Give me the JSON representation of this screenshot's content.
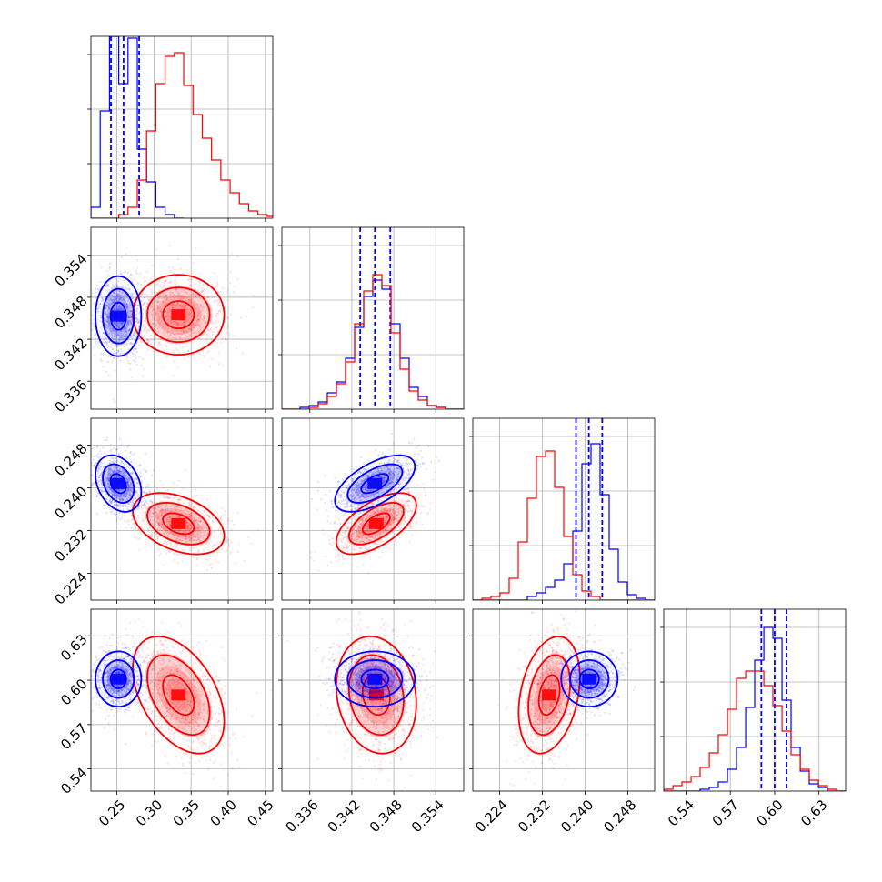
{
  "chart_data": {
    "type": "corner",
    "colors": {
      "sample_1": "#0000ff",
      "sample_2": "#ff0000"
    },
    "grid": true,
    "quantile_lines": {
      "style": "dashed",
      "color": "#0000ff"
    },
    "parameters": [
      {
        "range": [
          0.215,
          0.46
        ],
        "ticks": [
          0.25,
          0.3,
          0.35,
          0.4,
          0.45
        ],
        "tick_labels": [
          "0.25",
          "0.30",
          "0.35",
          "0.40",
          "0.45"
        ]
      },
      {
        "range": [
          0.332,
          0.358
        ],
        "ticks": [
          0.336,
          0.342,
          0.348,
          0.354
        ],
        "tick_labels": [
          "0.336",
          "0.342",
          "0.348",
          "0.354"
        ]
      },
      {
        "range": [
          0.219,
          0.253
        ],
        "ticks": [
          0.224,
          0.232,
          0.24,
          0.248
        ],
        "tick_labels": [
          "0.224",
          "0.232",
          "0.240",
          "0.248"
        ]
      },
      {
        "range": [
          0.525,
          0.648
        ],
        "ticks": [
          0.54,
          0.57,
          0.6,
          0.63
        ],
        "tick_labels": [
          "0.54",
          "0.57",
          "0.60",
          "0.63"
        ]
      }
    ],
    "series": [
      {
        "color": "#0000ff",
        "mean": [
          0.252,
          0.3453,
          0.2408,
          0.6008
        ],
        "sd": [
          0.014,
          0.0026,
          0.0024,
          0.0085
        ],
        "corr": {
          "0-1": 0.0,
          "0-2": -0.3,
          "0-3": 0.0,
          "1-2": 0.6,
          "1-3": 0.0,
          "2-3": 0.0
        },
        "quantiles": [
          [
            0.242,
            0.259,
            0.28
          ],
          [
            0.3432,
            0.3453,
            0.3475
          ],
          [
            0.2383,
            0.2407,
            0.2432
          ],
          [
            0.591,
            0.6,
            0.608
          ]
        ],
        "hist": [
          {
            "edges": [
              0.215,
              0.2275,
              0.24,
              0.2525,
              0.265,
              0.2775,
              0.29,
              0.3025,
              0.315,
              0.3275,
              0.34
            ],
            "counts": [
              0.06,
              0.59,
              1.0,
              0.74,
              0.99,
              0.38,
              0.2,
              0.06,
              0.02,
              0.0
            ]
          },
          {
            "edges": [
              0.332,
              0.3333,
              0.3346,
              0.3359,
              0.3372,
              0.3385,
              0.3398,
              0.3411,
              0.3424,
              0.3437,
              0.345,
              0.3463,
              0.3476,
              0.3489,
              0.3502,
              0.3515,
              0.3528,
              0.3541,
              0.3554,
              0.3567,
              0.358
            ],
            "counts": [
              0.0,
              0.0,
              0.01,
              0.02,
              0.04,
              0.09,
              0.15,
              0.28,
              0.45,
              0.62,
              0.71,
              0.66,
              0.47,
              0.28,
              0.12,
              0.07,
              0.02,
              0.01,
              0.0,
              0.0
            ]
          },
          {
            "edges": [
              0.219,
              0.2207,
              0.2224,
              0.2241,
              0.2258,
              0.2275,
              0.2292,
              0.2309,
              0.2326,
              0.2343,
              0.236,
              0.2377,
              0.2394,
              0.2411,
              0.2428,
              0.2445,
              0.2462,
              0.2479,
              0.2496,
              0.2513,
              0.253
            ],
            "counts": [
              0.0,
              0.0,
              0.0,
              0.0,
              0.0,
              0.0,
              0.02,
              0.04,
              0.07,
              0.11,
              0.2,
              0.38,
              0.75,
              0.86,
              0.58,
              0.28,
              0.1,
              0.03,
              0.01,
              0.0
            ]
          },
          {
            "edges": [
              0.525,
              0.5312,
              0.5373,
              0.5435,
              0.5496,
              0.5558,
              0.5619,
              0.5681,
              0.5742,
              0.5804,
              0.5865,
              0.5927,
              0.5988,
              0.605,
              0.6111,
              0.6173,
              0.6234,
              0.6296,
              0.6357,
              0.6419,
              0.648
            ],
            "counts": [
              0.0,
              0.0,
              0.0,
              0.0,
              0.01,
              0.02,
              0.05,
              0.12,
              0.24,
              0.46,
              0.72,
              0.9,
              0.84,
              0.5,
              0.24,
              0.11,
              0.04,
              0.02,
              0.0,
              0.0
            ]
          }
        ]
      },
      {
        "color": "#ff0000",
        "mean": [
          0.333,
          0.3455,
          0.2333,
          0.59
        ],
        "sd": [
          0.028,
          0.0026,
          0.0026,
          0.018
        ],
        "corr": {
          "0-1": 0.0,
          "0-2": -0.4,
          "0-3": -0.45,
          "1-2": 0.6,
          "1-3": -0.15,
          "2-3": 0.3
        },
        "hist": [
          {
            "edges": [
              0.215,
              0.2275,
              0.24,
              0.2525,
              0.265,
              0.2775,
              0.29,
              0.3025,
              0.315,
              0.3275,
              0.34,
              0.3525,
              0.365,
              0.3775,
              0.39,
              0.4025,
              0.415,
              0.4275,
              0.44,
              0.4525,
              0.465
            ],
            "counts": [
              0.0,
              0.0,
              0.0,
              0.02,
              0.06,
              0.21,
              0.48,
              0.74,
              0.89,
              0.91,
              0.73,
              0.57,
              0.44,
              0.32,
              0.21,
              0.14,
              0.08,
              0.04,
              0.02,
              0.01
            ]
          },
          {
            "edges": [
              0.332,
              0.3333,
              0.3346,
              0.3359,
              0.3372,
              0.3385,
              0.3398,
              0.3411,
              0.3424,
              0.3437,
              0.345,
              0.3463,
              0.3476,
              0.3489,
              0.3502,
              0.3515,
              0.3528,
              0.3541,
              0.3554,
              0.3567,
              0.358
            ],
            "counts": [
              0.0,
              0.0,
              0.0,
              0.01,
              0.03,
              0.07,
              0.14,
              0.26,
              0.47,
              0.65,
              0.74,
              0.68,
              0.42,
              0.22,
              0.1,
              0.05,
              0.02,
              0.01,
              0.0,
              0.0
            ]
          },
          {
            "edges": [
              0.219,
              0.2207,
              0.2224,
              0.2241,
              0.2258,
              0.2275,
              0.2292,
              0.2309,
              0.2326,
              0.2343,
              0.236,
              0.2377,
              0.2394,
              0.2411,
              0.2428,
              0.2445,
              0.2462,
              0.2479,
              0.2496,
              0.2513,
              0.253
            ],
            "counts": [
              0.0,
              0.01,
              0.02,
              0.04,
              0.12,
              0.32,
              0.56,
              0.79,
              0.82,
              0.62,
              0.35,
              0.14,
              0.05,
              0.02,
              0.0,
              0.0,
              0.0,
              0.0,
              0.0,
              0.0
            ]
          },
          {
            "edges": [
              0.525,
              0.5312,
              0.5373,
              0.5435,
              0.5496,
              0.5558,
              0.5619,
              0.5681,
              0.5742,
              0.5804,
              0.5865,
              0.5927,
              0.5988,
              0.605,
              0.6111,
              0.6173,
              0.6234,
              0.6296,
              0.6357,
              0.6419,
              0.648
            ],
            "counts": [
              0.01,
              0.03,
              0.05,
              0.08,
              0.13,
              0.21,
              0.31,
              0.45,
              0.62,
              0.66,
              0.66,
              0.58,
              0.47,
              0.33,
              0.2,
              0.12,
              0.06,
              0.03,
              0.01,
              0.0
            ]
          }
        ]
      }
    ]
  }
}
